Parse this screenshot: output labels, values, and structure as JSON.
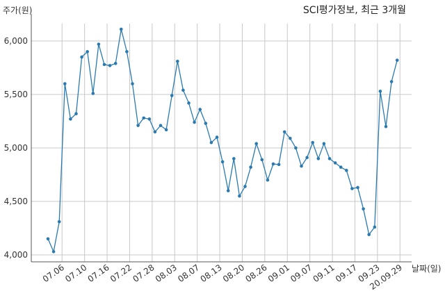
{
  "chart_data": {
    "type": "line",
    "title": "SCI평가정보, 최근 3개월",
    "ylabel": "주가(원)",
    "xlabel": "날짜(일)",
    "ylim": [
      4000,
      6250
    ],
    "yticks": [
      4000,
      4500,
      5000,
      5500,
      6000
    ],
    "ytick_labels": [
      "4,000",
      "4,500",
      "5,000",
      "5,500",
      "6,000"
    ],
    "xticks": [
      {
        "index": 2.5,
        "label": "07.06"
      },
      {
        "index": 6.5,
        "label": "07.10"
      },
      {
        "index": 10.5,
        "label": "07.16"
      },
      {
        "index": 14.5,
        "label": "07.22"
      },
      {
        "index": 18.5,
        "label": "07.28"
      },
      {
        "index": 22.5,
        "label": "08.03"
      },
      {
        "index": 26.5,
        "label": "08.07"
      },
      {
        "index": 30.5,
        "label": "08.13"
      },
      {
        "index": 34.5,
        "label": "08.20"
      },
      {
        "index": 38.5,
        "label": "08.26"
      },
      {
        "index": 42.5,
        "label": "09.01"
      },
      {
        "index": 46.5,
        "label": "09.07"
      },
      {
        "index": 50.5,
        "label": "09.11"
      },
      {
        "index": 54.5,
        "label": "09.17"
      },
      {
        "index": 58.5,
        "label": "09.23"
      },
      {
        "index": 62.5,
        "label": "20.09.29"
      }
    ],
    "color": "#2a7ab0",
    "grid": true,
    "series": [
      {
        "values": [
          4150,
          4030,
          4310,
          5600,
          5270,
          5320,
          5850,
          5900,
          5510,
          5970,
          5780,
          5770,
          5790,
          6110,
          5900,
          5600,
          5210,
          5280,
          5270,
          5150,
          5210,
          5170,
          5490,
          5810,
          5540,
          5420,
          5240,
          5360,
          5230,
          5050,
          5100,
          4870,
          4600,
          4900,
          4550,
          4640,
          4820,
          5040,
          4890,
          4700,
          4850,
          4845,
          5150,
          5090,
          5000,
          4830,
          4910,
          5050,
          4900,
          5040,
          4900,
          4860,
          4820,
          4790,
          4620,
          4630,
          4430,
          4190,
          4260,
          5530,
          5200,
          5620,
          5820
        ]
      }
    ]
  }
}
